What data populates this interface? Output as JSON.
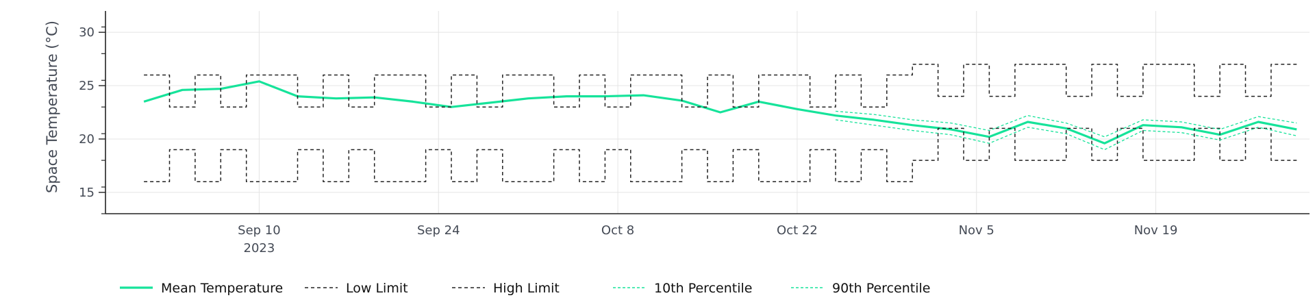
{
  "chart_data": {
    "type": "line",
    "ylabel": "Space Temperature (°C)",
    "xlabel": "",
    "title": "",
    "xlim": [
      "2023-08-29",
      "2023-12-01"
    ],
    "ylim": [
      13,
      32
    ],
    "grid": true,
    "legend_position": "bottom-left",
    "x_ticks": [
      {
        "date": "2023-09-10",
        "label": "Sep 10",
        "sublabel": "2023"
      },
      {
        "date": "2023-09-24",
        "label": "Sep 24",
        "sublabel": ""
      },
      {
        "date": "2023-10-08",
        "label": "Oct 8",
        "sublabel": ""
      },
      {
        "date": "2023-10-22",
        "label": "Oct 22",
        "sublabel": ""
      },
      {
        "date": "2023-11-05",
        "label": "Nov 5",
        "sublabel": ""
      },
      {
        "date": "2023-11-19",
        "label": "Nov 19",
        "sublabel": ""
      }
    ],
    "y_ticks": [
      {
        "value": 15,
        "label": "15"
      },
      {
        "value": 20,
        "label": "20"
      },
      {
        "value": 25,
        "label": "25"
      },
      {
        "value": 30,
        "label": "30"
      }
    ],
    "series": [
      {
        "name": "Mean Temperature",
        "style": "solid",
        "color": "#16e39a",
        "x": [
          "2023-09-01",
          "2023-09-04",
          "2023-09-07",
          "2023-09-10",
          "2023-09-13",
          "2023-09-16",
          "2023-09-19",
          "2023-09-22",
          "2023-09-25",
          "2023-09-28",
          "2023-10-01",
          "2023-10-04",
          "2023-10-07",
          "2023-10-10",
          "2023-10-13",
          "2023-10-16",
          "2023-10-19",
          "2023-10-22",
          "2023-10-25",
          "2023-10-28",
          "2023-10-31",
          "2023-11-03",
          "2023-11-06",
          "2023-11-09",
          "2023-11-12",
          "2023-11-15",
          "2023-11-18",
          "2023-11-21",
          "2023-11-24",
          "2023-11-27",
          "2023-11-30"
        ],
        "y": [
          23.5,
          24.6,
          24.7,
          25.4,
          24.0,
          23.8,
          23.9,
          23.5,
          23.0,
          23.4,
          23.8,
          24.0,
          24.0,
          24.1,
          23.6,
          22.5,
          23.5,
          22.8,
          22.2,
          21.8,
          21.3,
          20.9,
          20.2,
          21.6,
          21.0,
          19.6,
          21.3,
          21.1,
          20.4,
          21.6,
          20.9
        ]
      },
      {
        "name": "Low Limit",
        "style": "dashed",
        "color": "#222222",
        "x": [
          "2023-09-01",
          "2023-09-03",
          "2023-09-05",
          "2023-09-07",
          "2023-09-09",
          "2023-09-11",
          "2023-09-13",
          "2023-09-15",
          "2023-09-17",
          "2023-09-19",
          "2023-09-21",
          "2023-09-23",
          "2023-09-25",
          "2023-09-27",
          "2023-09-29",
          "2023-10-01",
          "2023-10-03",
          "2023-10-05",
          "2023-10-07",
          "2023-10-09",
          "2023-10-11",
          "2023-10-13",
          "2023-10-15",
          "2023-10-17",
          "2023-10-19",
          "2023-10-21",
          "2023-10-23",
          "2023-10-25",
          "2023-10-27",
          "2023-10-29",
          "2023-10-31",
          "2023-11-02",
          "2023-11-04",
          "2023-11-06",
          "2023-11-08",
          "2023-11-10",
          "2023-11-12",
          "2023-11-14",
          "2023-11-16",
          "2023-11-18",
          "2023-11-20",
          "2023-11-22",
          "2023-11-24",
          "2023-11-26",
          "2023-11-28",
          "2023-11-30"
        ],
        "y": [
          16,
          19,
          16,
          19,
          16,
          16,
          19,
          16,
          19,
          16,
          16,
          19,
          16,
          19,
          16,
          16,
          19,
          16,
          19,
          16,
          16,
          19,
          16,
          19,
          16,
          16,
          19,
          16,
          19,
          16,
          18,
          21,
          18,
          21,
          18,
          18,
          21,
          18,
          21,
          18,
          18,
          21,
          18,
          21,
          18,
          18
        ]
      },
      {
        "name": "High Limit",
        "style": "dashed",
        "color": "#222222",
        "x": [
          "2023-09-01",
          "2023-09-03",
          "2023-09-05",
          "2023-09-07",
          "2023-09-09",
          "2023-09-11",
          "2023-09-13",
          "2023-09-15",
          "2023-09-17",
          "2023-09-19",
          "2023-09-21",
          "2023-09-23",
          "2023-09-25",
          "2023-09-27",
          "2023-09-29",
          "2023-10-01",
          "2023-10-03",
          "2023-10-05",
          "2023-10-07",
          "2023-10-09",
          "2023-10-11",
          "2023-10-13",
          "2023-10-15",
          "2023-10-17",
          "2023-10-19",
          "2023-10-21",
          "2023-10-23",
          "2023-10-25",
          "2023-10-27",
          "2023-10-29",
          "2023-10-31",
          "2023-11-02",
          "2023-11-04",
          "2023-11-06",
          "2023-11-08",
          "2023-11-10",
          "2023-11-12",
          "2023-11-14",
          "2023-11-16",
          "2023-11-18",
          "2023-11-20",
          "2023-11-22",
          "2023-11-24",
          "2023-11-26",
          "2023-11-28",
          "2023-11-30"
        ],
        "y": [
          26,
          23,
          26,
          23,
          26,
          26,
          23,
          26,
          23,
          26,
          26,
          23,
          26,
          23,
          26,
          26,
          23,
          26,
          23,
          26,
          26,
          23,
          26,
          23,
          26,
          26,
          23,
          26,
          23,
          26,
          27,
          24,
          27,
          24,
          27,
          27,
          24,
          27,
          24,
          27,
          27,
          24,
          27,
          24,
          27,
          27
        ]
      },
      {
        "name": "10th Percentile",
        "style": "dashed",
        "color": "#16e39a",
        "x": [
          "2023-10-25",
          "2023-10-28",
          "2023-10-31",
          "2023-11-03",
          "2023-11-06",
          "2023-11-09",
          "2023-11-12",
          "2023-11-15",
          "2023-11-18",
          "2023-11-21",
          "2023-11-24",
          "2023-11-27",
          "2023-11-30"
        ],
        "y": [
          21.8,
          21.3,
          20.8,
          20.4,
          19.6,
          21.1,
          20.5,
          19.0,
          20.8,
          20.6,
          19.9,
          21.1,
          20.3
        ]
      },
      {
        "name": "90th Percentile",
        "style": "dashed",
        "color": "#16e39a",
        "x": [
          "2023-10-25",
          "2023-10-28",
          "2023-10-31",
          "2023-11-03",
          "2023-11-06",
          "2023-11-09",
          "2023-11-12",
          "2023-11-15",
          "2023-11-18",
          "2023-11-21",
          "2023-11-24",
          "2023-11-27",
          "2023-11-30"
        ],
        "y": [
          22.6,
          22.3,
          21.8,
          21.5,
          20.8,
          22.2,
          21.5,
          20.2,
          21.8,
          21.6,
          20.9,
          22.1,
          21.5
        ]
      }
    ]
  },
  "legend": {
    "items": [
      {
        "label": "Mean Temperature",
        "style": "solid",
        "color": "#16e39a"
      },
      {
        "label": "Low Limit",
        "style": "dashed",
        "color": "#222222"
      },
      {
        "label": "High Limit",
        "style": "dashed",
        "color": "#222222"
      },
      {
        "label": "10th Percentile",
        "style": "dashed",
        "color": "#16e39a"
      },
      {
        "label": "90th Percentile",
        "style": "dashed",
        "color": "#16e39a"
      }
    ]
  }
}
